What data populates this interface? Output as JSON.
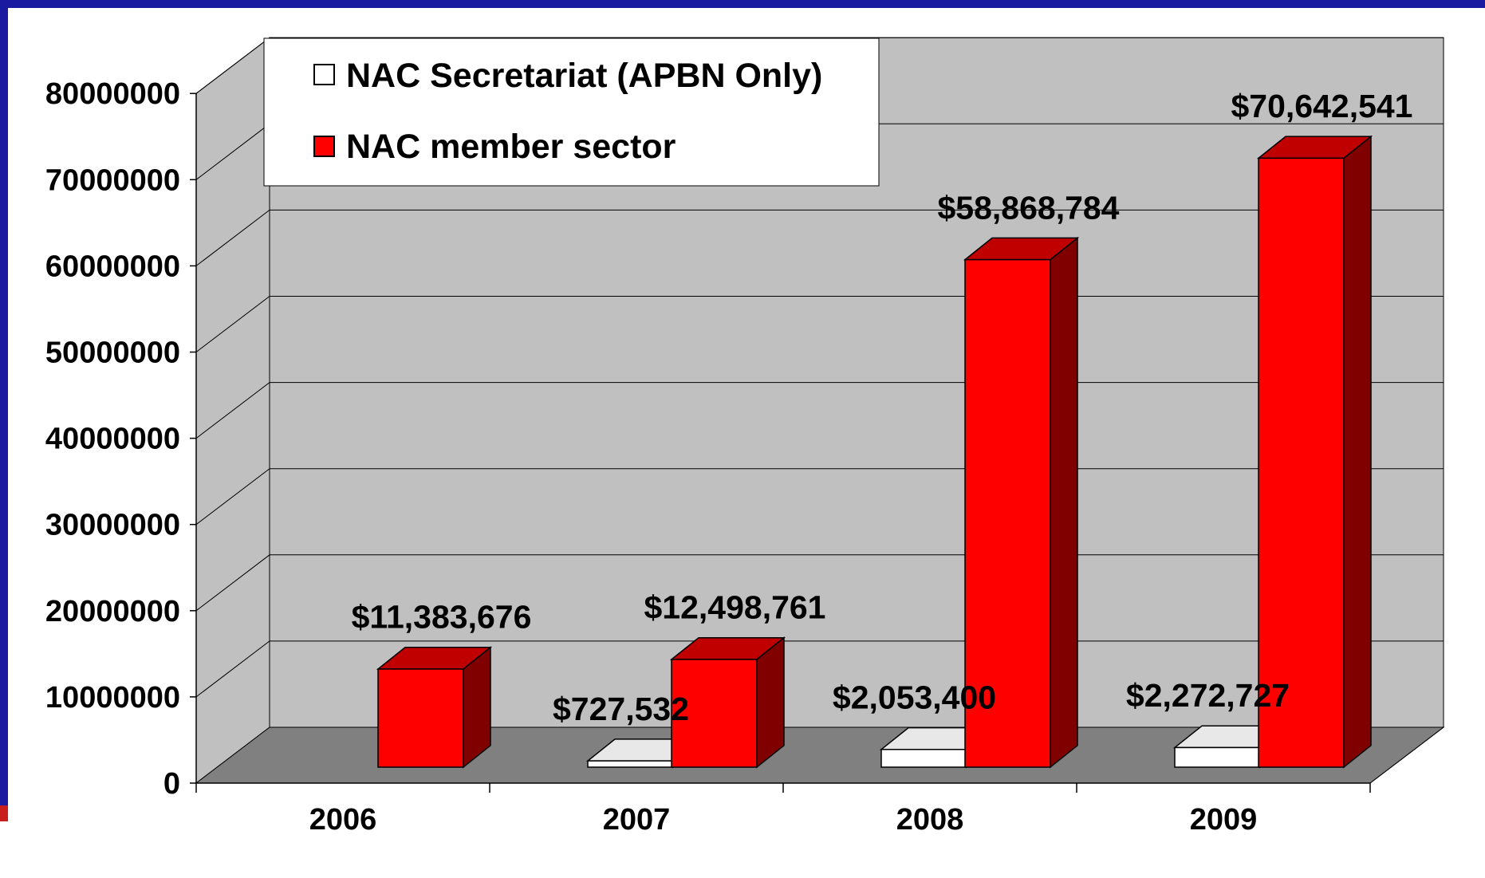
{
  "chart_data": {
    "type": "bar",
    "style": "3d-clustered",
    "categories": [
      "2006",
      "2007",
      "2008",
      "2009"
    ],
    "series": [
      {
        "name": "NAC Secretariat (APBN Only)",
        "values": [
          0,
          727532,
          2053400,
          2272727
        ],
        "labels": [
          "",
          "$727,532",
          "$2,053,400",
          "$2,272,727"
        ],
        "color": "#ffffff"
      },
      {
        "name": "NAC member sector",
        "values": [
          11383676,
          12498761,
          58868784,
          70642541
        ],
        "labels": [
          "$11,383,676",
          "$12,498,761",
          "$58,868,784",
          "$70,642,541"
        ],
        "color": "#ff0000"
      }
    ],
    "yticks": [
      "0",
      "10000000",
      "20000000",
      "30000000",
      "40000000",
      "50000000",
      "60000000",
      "70000000",
      "80000000"
    ],
    "ylim": [
      0,
      80000000
    ],
    "grid": true,
    "legend_position": "top-left",
    "colors": {
      "frame": "#1a1aa0",
      "wall": "#c0c0c0",
      "floor": "#808080",
      "red_side": "#800000",
      "red_top": "#c00000"
    }
  }
}
